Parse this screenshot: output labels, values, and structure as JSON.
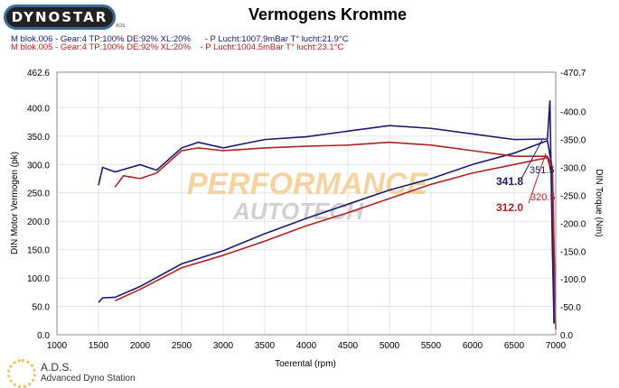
{
  "header": {
    "logo": "DYNOSTAR",
    "logo_sub": "ADS",
    "title": "Vermogens Kromme",
    "runs": [
      {
        "label": "M blok.006 - Gear:4 TP:100% DE:92% XL:20%",
        "conditions": "- P Lucht:1007.9mBar T° lucht:21.9°C",
        "color": "#1a1a6e"
      },
      {
        "label": "M blok.005 - Gear:4 TP:100% DE:92% XL:20%",
        "conditions": "- P Lucht:1004.5mBar T° lucht:23.1°C",
        "color": "#b22222"
      }
    ]
  },
  "footer": {
    "title": "A.D.S.",
    "subtitle": "Advanced Dyno Station"
  },
  "watermark": "PERFORMANCE AUTOTECH",
  "chart_data": {
    "type": "line",
    "title": "Vermogens Kromme",
    "xlabel": "Toerental (rpm)",
    "ylabel": "DIN Motor Vermogen (pk)",
    "y2label": "DIN Torque (Nm)",
    "xlim": [
      1000,
      7000
    ],
    "ylim": [
      0,
      462.6
    ],
    "y2lim": [
      0,
      470.7
    ],
    "xticks": [
      "1000",
      "1500",
      "2000",
      "2500",
      "3000",
      "3500",
      "4000",
      "4500",
      "5000",
      "5500",
      "6000",
      "6500",
      "7000"
    ],
    "yticks": [
      "0.0",
      "50.0",
      "100.0",
      "150.0",
      "200.0",
      "250.0",
      "300.0",
      "350.0",
      "400.0",
      "462.6"
    ],
    "y2ticks": [
      "0.0",
      "-50.0",
      "-100.0",
      "-150.0",
      "-200.0",
      "-250.0",
      "-300.0",
      "-350.0",
      "-400.0",
      "-470.7"
    ],
    "grid": true,
    "series": [
      {
        "name": "blok.006 power",
        "axis": "left",
        "color": "#1a1a6e",
        "x": [
          1500,
          1550,
          1700,
          2000,
          2500,
          3000,
          3500,
          4000,
          4500,
          5000,
          5500,
          6000,
          6500,
          6900,
          6950,
          6980
        ],
        "values": [
          57,
          65,
          66,
          85,
          125,
          148,
          178,
          205,
          230,
          255,
          275,
          300,
          320,
          342,
          300,
          20
        ]
      },
      {
        "name": "blok.005 power",
        "axis": "left",
        "color": "#b22222",
        "x": [
          1700,
          2000,
          2500,
          3000,
          3500,
          4000,
          4500,
          5000,
          5500,
          6000,
          6500,
          6900,
          6960,
          7000
        ],
        "values": [
          60,
          80,
          118,
          140,
          165,
          192,
          215,
          240,
          265,
          285,
          300,
          312,
          280,
          10
        ]
      },
      {
        "name": "blok.006 torque",
        "axis": "right",
        "color": "#1a1a6e",
        "x": [
          1500,
          1550,
          1700,
          2000,
          2200,
          2500,
          2700,
          3000,
          3500,
          4000,
          4500,
          5000,
          5500,
          6000,
          6500,
          6900,
          6930,
          6960,
          6980
        ],
        "values": [
          268,
          300,
          292,
          305,
          295,
          335,
          345,
          335,
          350,
          355,
          365,
          375,
          370,
          360,
          350,
          351,
          420,
          150,
          20
        ]
      },
      {
        "name": "blok.005 torque",
        "axis": "right",
        "color": "#b22222",
        "x": [
          1700,
          1800,
          2000,
          2200,
          2500,
          2700,
          3000,
          3500,
          4000,
          4500,
          5000,
          5500,
          6000,
          6500,
          6900,
          6960,
          7000
        ],
        "values": [
          265,
          285,
          280,
          290,
          330,
          335,
          330,
          335,
          338,
          340,
          345,
          340,
          330,
          320,
          320,
          300,
          10
        ]
      }
    ],
    "annotations": [
      {
        "text": "341.8",
        "color": "#1a1a6e"
      },
      {
        "text": "312.0",
        "color": "#b22222"
      },
      {
        "text": "351.5",
        "color": "#1a1a6e"
      },
      {
        "text": "320.5",
        "color": "#b22222"
      }
    ]
  }
}
